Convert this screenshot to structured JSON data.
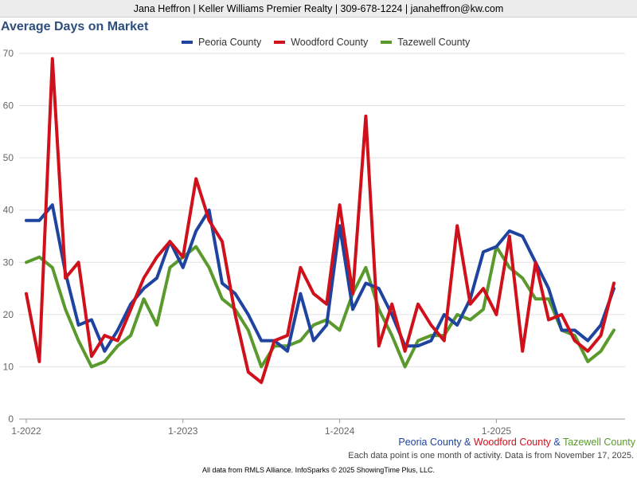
{
  "header": {
    "text": "Jana Heffron | Keller Williams Premier Realty | 309-678-1224 | janaheffron@kw.com"
  },
  "chart_data": {
    "type": "line",
    "title": "Average Days on Market",
    "ylim": [
      0,
      70
    ],
    "yticks": [
      "0",
      "10",
      "20",
      "30",
      "40",
      "50",
      "60",
      "70"
    ],
    "xticks": [
      {
        "label": "1-2022",
        "index": 0
      },
      {
        "label": "1-2023",
        "index": 12
      },
      {
        "label": "1-2024",
        "index": 24
      },
      {
        "label": "1-2025",
        "index": 36
      }
    ],
    "grid": true,
    "legend_position": "top",
    "series": [
      {
        "name": "Peoria County",
        "color": "#1f44a0",
        "values": [
          38,
          38,
          41,
          28,
          18,
          19,
          13,
          17,
          22,
          25,
          27,
          34,
          29,
          36,
          40,
          26,
          24,
          20,
          15,
          15,
          13,
          24,
          15,
          18,
          37,
          21,
          26,
          25,
          20,
          14,
          14,
          15,
          20,
          18,
          23,
          32,
          33,
          36,
          35,
          30,
          25,
          17,
          17,
          15,
          18,
          25
        ]
      },
      {
        "name": "Woodford County",
        "color": "#d0101a",
        "values": [
          24,
          11,
          69,
          27,
          30,
          12,
          16,
          15,
          21,
          27,
          31,
          34,
          31,
          46,
          38,
          34,
          20,
          9,
          7,
          15,
          16,
          29,
          24,
          22,
          41,
          24,
          58,
          14,
          22,
          13,
          22,
          18,
          15,
          37,
          22,
          25,
          20,
          35,
          13,
          30,
          19,
          20,
          15,
          13,
          16,
          26
        ]
      },
      {
        "name": "Tazewell County",
        "color": "#5a9a2c",
        "values": [
          30,
          31,
          29,
          21,
          15,
          10,
          11,
          14,
          16,
          23,
          18,
          29,
          31,
          33,
          29,
          23,
          21,
          17,
          10,
          14,
          14,
          15,
          18,
          19,
          17,
          24,
          29,
          21,
          16,
          10,
          15,
          16,
          16,
          20,
          19,
          21,
          33,
          29,
          27,
          23,
          23,
          17,
          16,
          11,
          13,
          17
        ]
      }
    ]
  },
  "credit": {
    "peoria": "Peoria County",
    "amp1": " & ",
    "woodford": "Woodford County",
    "amp2": " & ",
    "tazewell": "Tazewell County"
  },
  "note": "Each data point is one month of activity. Data is from November 17, 2025.",
  "footer": "All data from RMLS Alliance. InfoSparks © 2025 ShowingTime Plus, LLC."
}
